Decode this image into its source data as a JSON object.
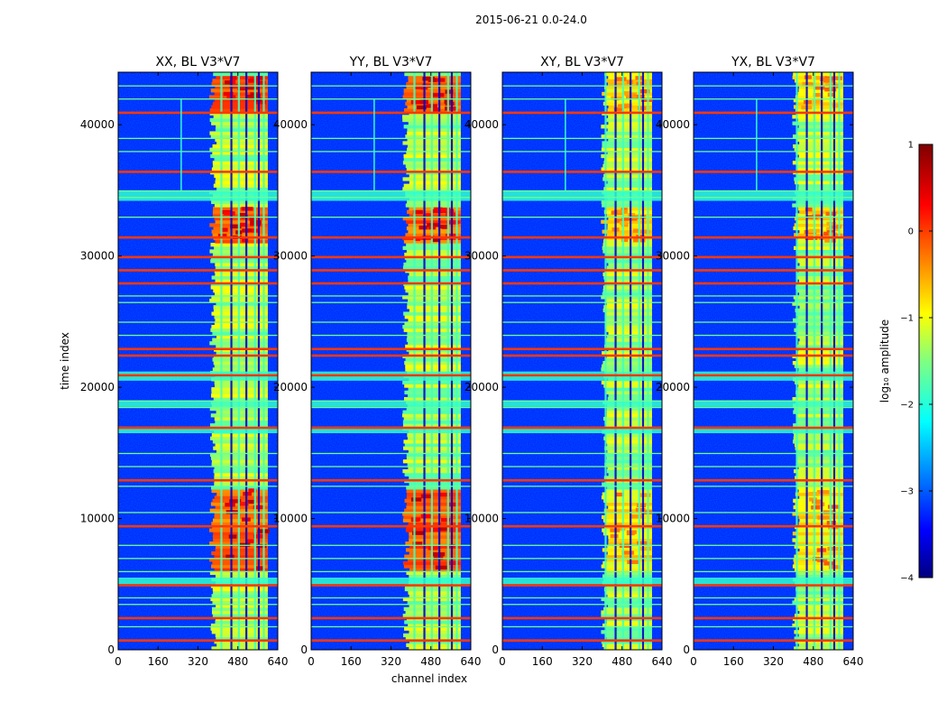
{
  "chart_data": {
    "type": "heatmap",
    "suptitle": "2015-06-21 0.0-24.0",
    "xlabel": "channel index",
    "ylabel": "time index",
    "xlim": [
      0,
      640
    ],
    "ylim": [
      0,
      44000
    ],
    "xticks": [
      0,
      160,
      320,
      480,
      640
    ],
    "yticks": [
      0,
      10000,
      20000,
      30000,
      40000
    ],
    "panels": [
      {
        "polarization": "XX",
        "title": "XX, BL V3*V7"
      },
      {
        "polarization": "YY",
        "title": "YY, BL V3*V7"
      },
      {
        "polarization": "XY",
        "title": "XY, BL V3*V7"
      },
      {
        "polarization": "YX",
        "title": "YX, BL V3*V7"
      }
    ],
    "colorbar": {
      "label": "log₁₀ amplitude",
      "range": [
        -4,
        1
      ],
      "ticks": [
        1,
        0,
        -1,
        -2,
        -3,
        -4
      ],
      "tick_labels": [
        "1",
        "0",
        "−1",
        "−2",
        "−3",
        "−4"
      ],
      "colormap": "jet"
    },
    "features": {
      "background_log_amplitude": -3.2,
      "bright_band_channels": [
        380,
        600
      ],
      "bright_band_log_amplitude": -1.3,
      "hot_band_log_amplitude": 0.2,
      "hot_time_ranges": [
        [
          41000,
          43500
        ],
        [
          31000,
          33500
        ],
        [
          6000,
          12000
        ]
      ],
      "rfi_channel_columns": [
        410,
        450,
        480,
        510,
        545,
        560,
        580
      ],
      "rfi_time_rows_strong": [
        41000,
        36500,
        31500,
        30000,
        29000,
        28000,
        23000,
        22500,
        21000,
        17000,
        13000,
        9500,
        5000,
        2500,
        800
      ],
      "rfi_time_rows_weak": [
        43000,
        42000,
        39000,
        38000,
        35000,
        34500,
        33000,
        27000,
        26500,
        25000,
        24000,
        19000,
        18500,
        15000,
        14000,
        12500,
        10500,
        8000,
        7000,
        6000,
        4000,
        3500,
        1800
      ],
      "wide_band_time_ranges": [
        [
          34200,
          35000
        ],
        [
          20500,
          21200
        ],
        [
          18500,
          19000
        ],
        [
          16500,
          17000
        ],
        [
          5000,
          5500
        ]
      ],
      "vertical_streak_channel": 250,
      "vertical_streak_time_range": [
        35000,
        42000
      ]
    }
  }
}
